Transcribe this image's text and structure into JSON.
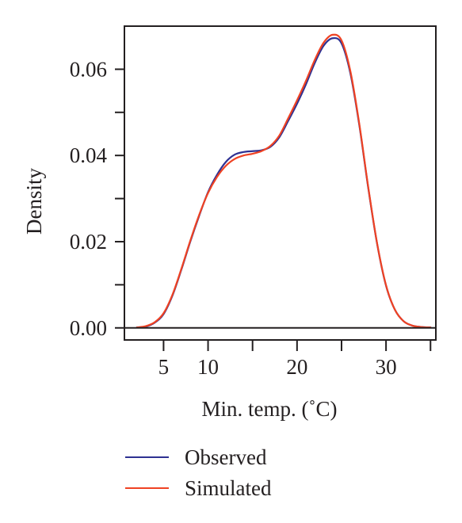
{
  "chart_data": {
    "type": "line",
    "xlabel": "Min. temp. (˚C)",
    "ylabel": "Density",
    "xlim": [
      0.6,
      35.6
    ],
    "ylim": [
      -0.0028,
      0.07
    ],
    "x_ticks": [
      5,
      10,
      15,
      20,
      25,
      30,
      35
    ],
    "x_tick_labels": [
      "5",
      "10",
      "",
      "20",
      "",
      "30",
      ""
    ],
    "y_ticks": [
      0,
      0.01,
      0.02,
      0.03,
      0.04,
      0.05,
      0.06
    ],
    "y_tick_labels": [
      "0.00",
      "",
      "0.02",
      "",
      "0.04",
      "",
      "0.06"
    ],
    "grid": false,
    "legend_position": "bottom-left",
    "series": [
      {
        "name": "Observed",
        "color": "#2e3192",
        "x": [
          2.0,
          3.0,
          4.0,
          5.0,
          6.0,
          7.0,
          8.0,
          9.0,
          10.0,
          11.0,
          12.0,
          13.0,
          14.0,
          15.0,
          16.0,
          17.0,
          18.0,
          19.0,
          20.0,
          21.0,
          22.0,
          23.0,
          24.0,
          25.0,
          26.0,
          27.0,
          28.0,
          29.0,
          30.0,
          31.0,
          32.0,
          33.0,
          34.0,
          35.0
        ],
        "y": [
          0.0001,
          0.0003,
          0.0012,
          0.0032,
          0.0075,
          0.0135,
          0.02,
          0.026,
          0.0315,
          0.0355,
          0.0385,
          0.0402,
          0.0408,
          0.041,
          0.0412,
          0.042,
          0.0442,
          0.048,
          0.052,
          0.0565,
          0.0615,
          0.0655,
          0.0672,
          0.066,
          0.059,
          0.047,
          0.0325,
          0.0195,
          0.0098,
          0.0042,
          0.0015,
          0.0005,
          0.0002,
          0.0001
        ]
      },
      {
        "name": "Simulated",
        "color": "#ef4223",
        "x": [
          2.0,
          3.0,
          4.0,
          5.0,
          6.0,
          7.0,
          8.0,
          9.0,
          10.0,
          11.0,
          12.0,
          13.0,
          14.0,
          15.0,
          16.0,
          17.0,
          18.0,
          19.0,
          20.0,
          21.0,
          22.0,
          23.0,
          24.0,
          25.0,
          26.0,
          27.0,
          28.0,
          29.0,
          30.0,
          31.0,
          32.0,
          33.0,
          34.0,
          35.0
        ],
        "y": [
          0.0001,
          0.0004,
          0.0013,
          0.0034,
          0.0077,
          0.0137,
          0.0202,
          0.0262,
          0.0313,
          0.035,
          0.0376,
          0.0392,
          0.04,
          0.0404,
          0.041,
          0.0422,
          0.0446,
          0.0486,
          0.0528,
          0.0573,
          0.0622,
          0.0662,
          0.068,
          0.0667,
          0.0595,
          0.0473,
          0.0327,
          0.0196,
          0.0099,
          0.0042,
          0.0015,
          0.0005,
          0.0002,
          0.0001
        ]
      }
    ]
  }
}
